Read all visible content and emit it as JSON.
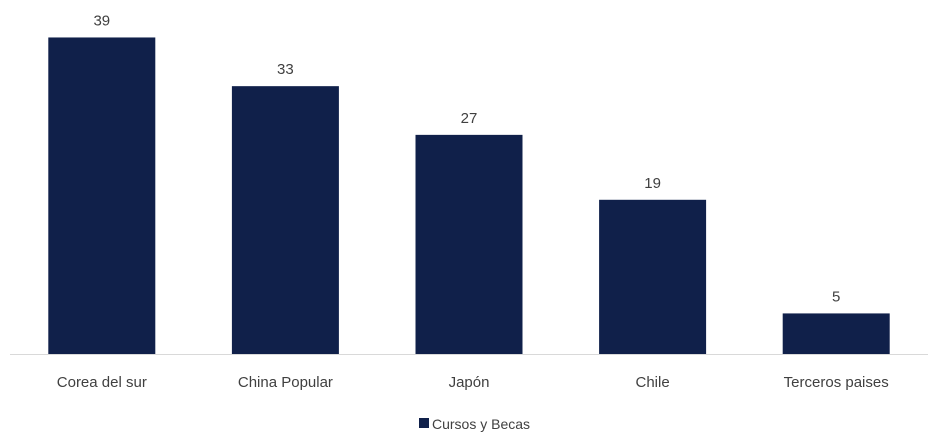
{
  "chart_data": {
    "type": "bar",
    "categories": [
      "Corea del sur",
      "China Popular",
      "Japón",
      "Chile",
      "Terceros paises"
    ],
    "series": [
      {
        "name": "Cursos y Becas",
        "values": [
          39,
          33,
          27,
          19,
          5
        ],
        "color": "#10204A"
      }
    ],
    "data_labels": [
      "39",
      "33",
      "27",
      "19",
      "5"
    ],
    "ylim": [
      0,
      43
    ],
    "grid": false,
    "legend": "bottom-center",
    "axis_color": "#D9D9D9"
  }
}
